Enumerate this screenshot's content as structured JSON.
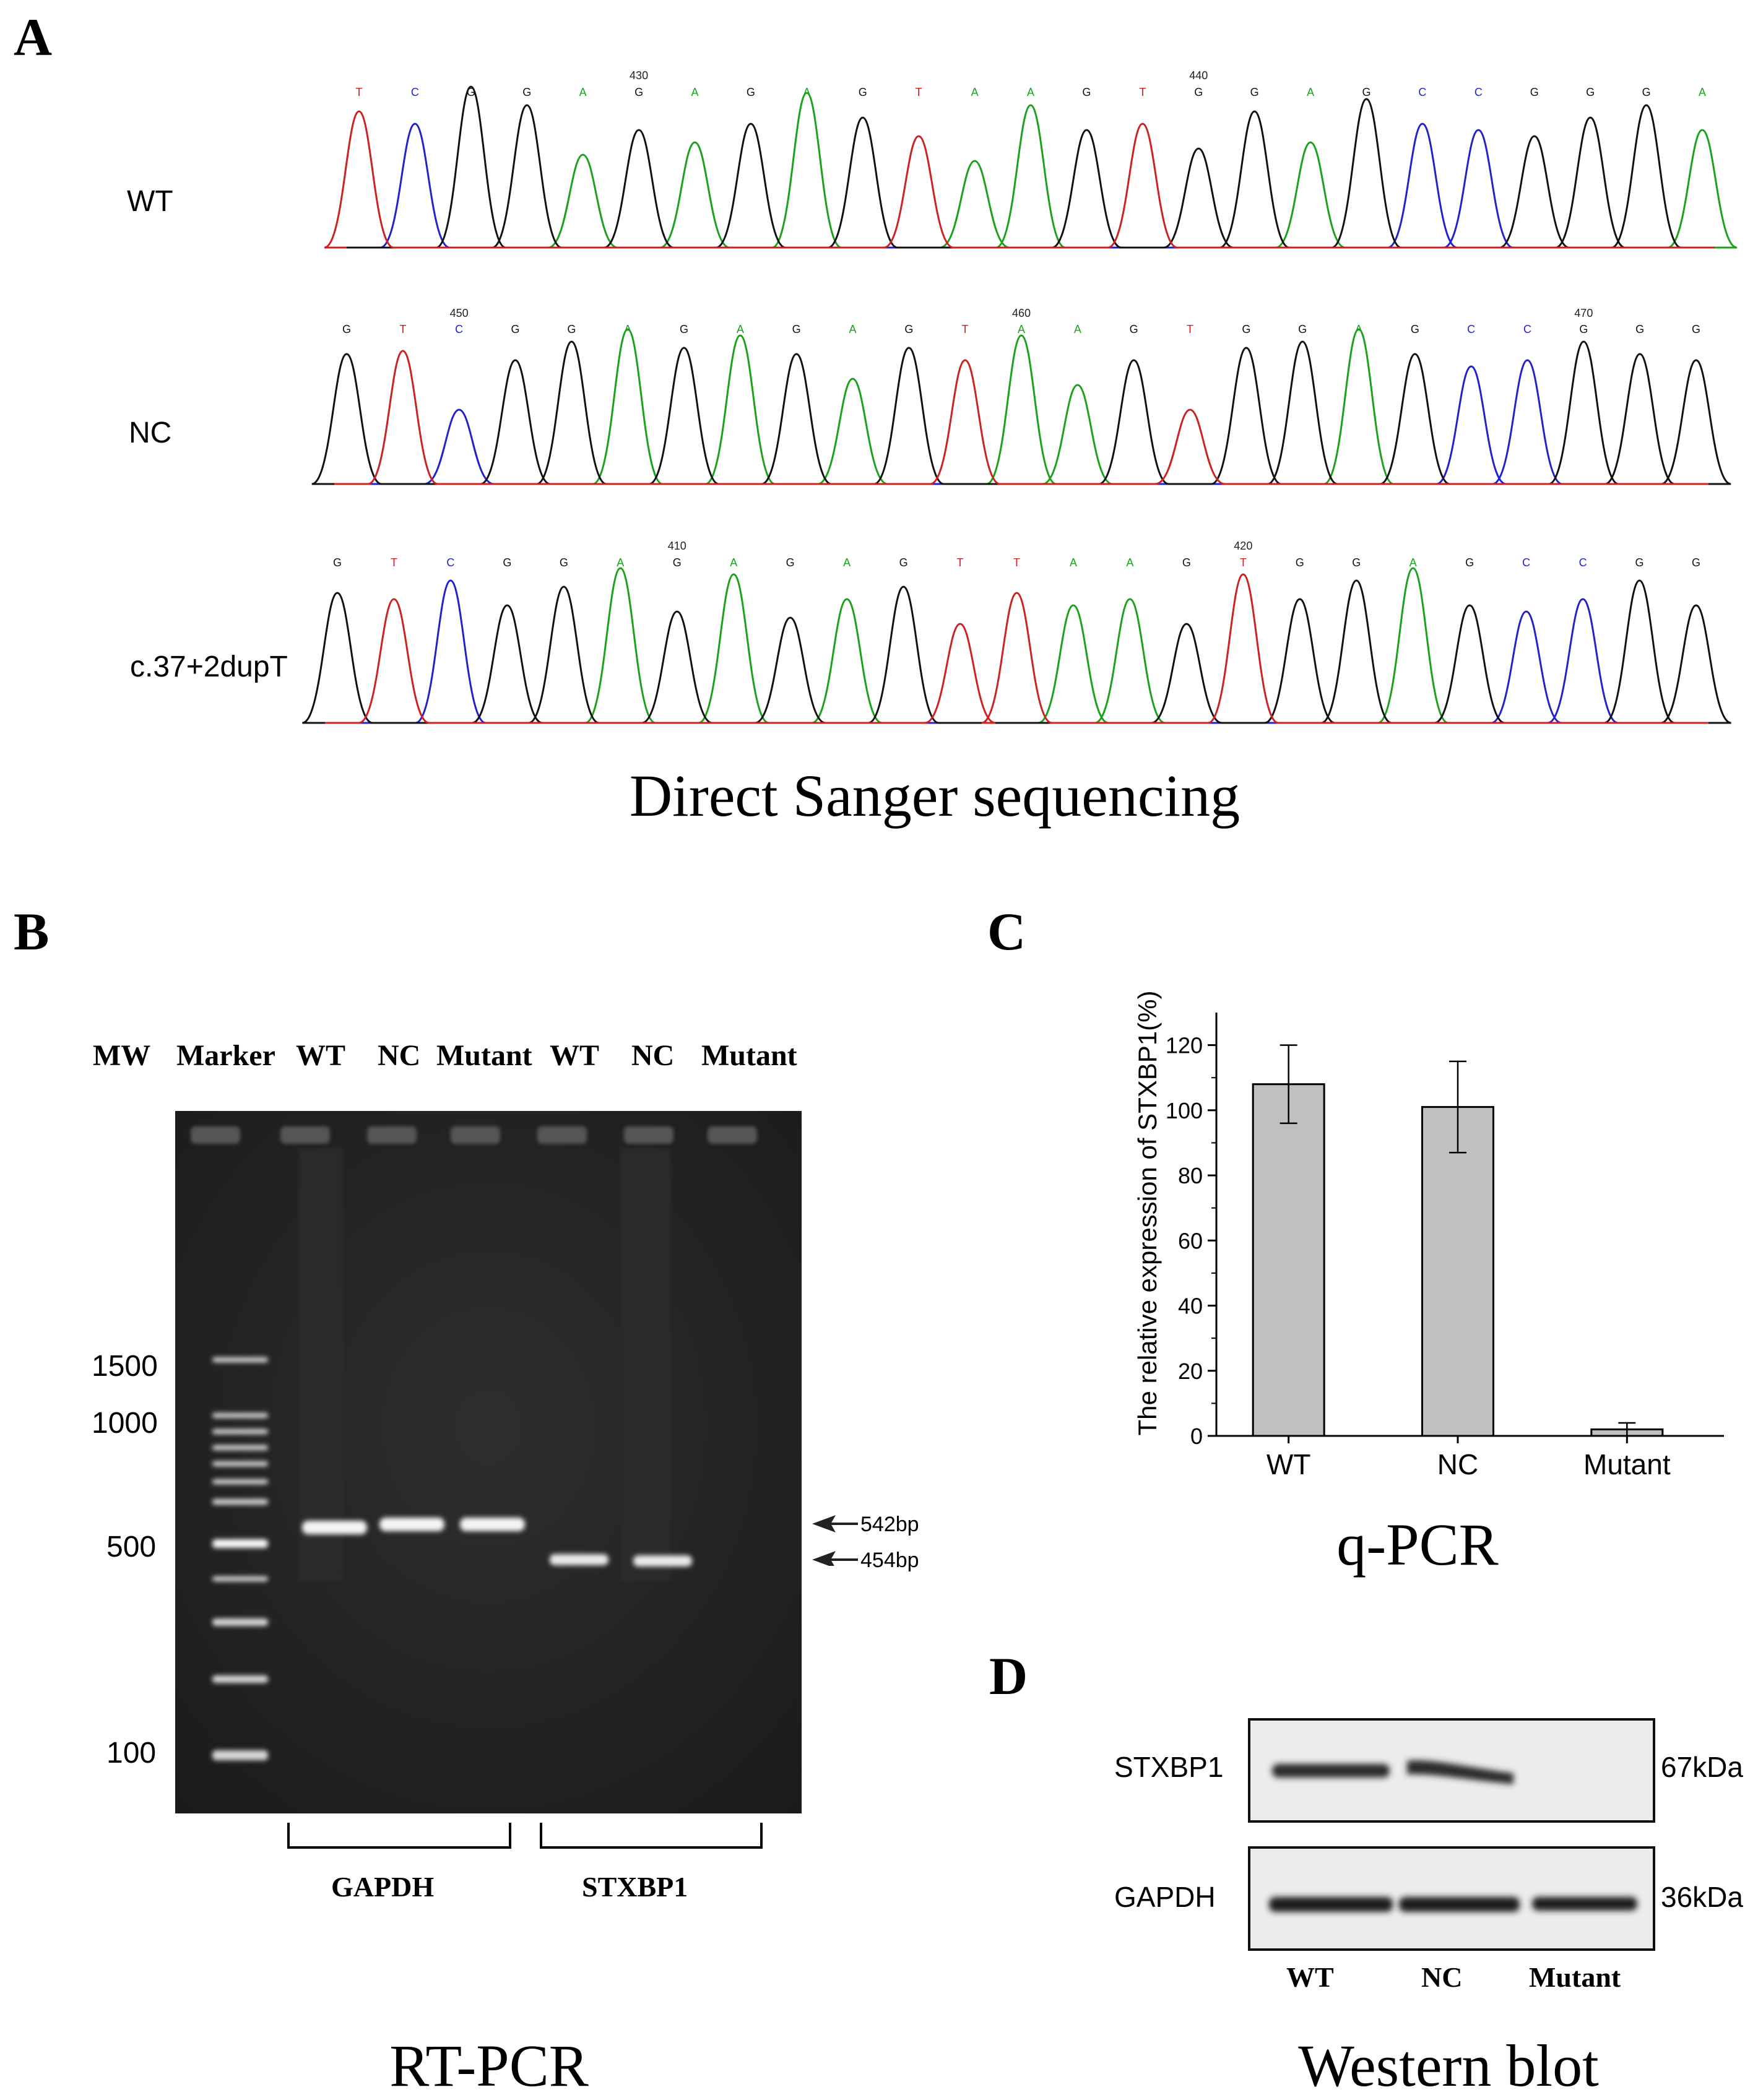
{
  "panelA": {
    "letter": "A",
    "tracks": [
      {
        "label": "WT",
        "bases": "TCGGAGAGAGTAAGTGGAGCCGGGA",
        "ticks": [
          {
            "idx": 5,
            "text": "430"
          },
          {
            "idx": 15,
            "text": "440"
          }
        ]
      },
      {
        "label": "NC",
        "bases": "GTCGGAGAGAGTAAGTGGAGCCGGG",
        "ticks": [
          {
            "idx": 2,
            "text": "450"
          },
          {
            "idx": 12,
            "text": "460"
          },
          {
            "idx": 22,
            "text": "470"
          }
        ]
      },
      {
        "label": "c.37+2dupT",
        "bases": "GTCGGAGAGAGTTAAGTGGAGCCGG",
        "ticks": [
          {
            "idx": 6,
            "text": "410"
          },
          {
            "idx": 16,
            "text": "420"
          }
        ]
      }
    ],
    "caption": "Direct Sanger sequencing"
  },
  "panelB": {
    "letter": "B",
    "lane_headers": [
      "MW",
      "Marker",
      "WT",
      "NC",
      "Mutant",
      "WT",
      "NC",
      "Mutant"
    ],
    "mw_labels": [
      "1500",
      "1000",
      "500",
      "100"
    ],
    "band_labels": [
      "542bp",
      "454bp"
    ],
    "groups": [
      "GAPDH",
      "STXBP1"
    ],
    "caption": "RT-PCR"
  },
  "panelC": {
    "letter": "C",
    "caption": "q-PCR",
    "chart_data": {
      "type": "bar",
      "categories": [
        "WT",
        "NC",
        "Mutant"
      ],
      "values": [
        108,
        101,
        2
      ],
      "errors": [
        12,
        14,
        2
      ],
      "ylabel": "The relative expression of STXBP1(%)",
      "xlabel": "",
      "ylim": [
        0,
        130
      ],
      "yticks": [
        "0",
        "20",
        "40",
        "60",
        "80",
        "100",
        "120"
      ],
      "bar_color": "#c0c0c0"
    }
  },
  "panelD": {
    "letter": "D",
    "rows": [
      {
        "label": "STXBP1",
        "size": "67kDa"
      },
      {
        "label": "GAPDH",
        "size": "36kDa"
      }
    ],
    "lanes": [
      "WT",
      "NC",
      "Mutant"
    ],
    "caption": "Western blot"
  }
}
